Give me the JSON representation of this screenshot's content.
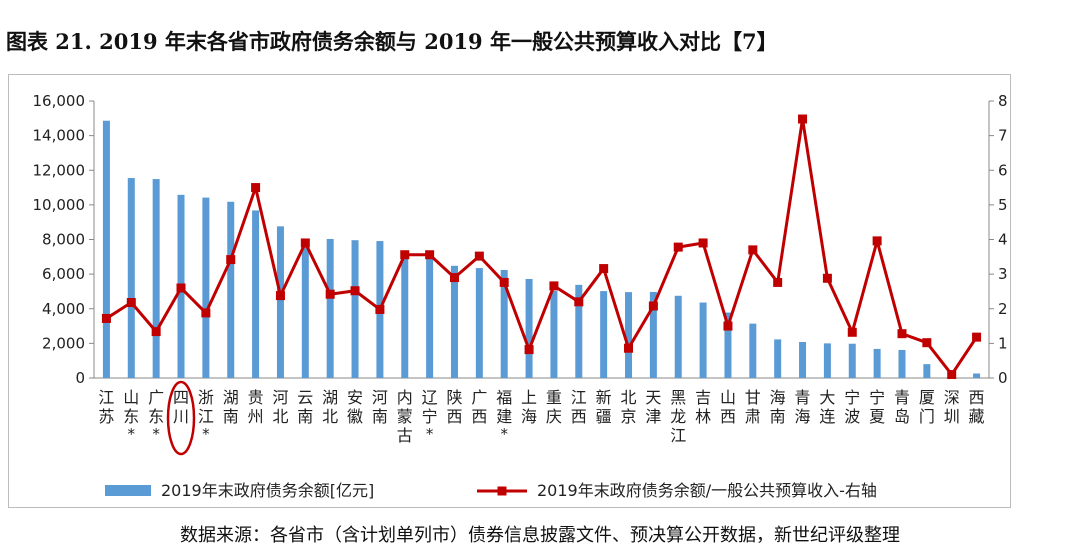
{
  "title": "图表 21. 2019 年末各省市政府债务余额与 2019 年一般公共预算收入对比【7】",
  "source": "数据来源：各省市（含计划单列市）债券信息披露文件、预决算公开数据，新世纪评级整理",
  "chart_data": {
    "type": "bar+line",
    "categories": [
      {
        "name": "江苏",
        "star": false
      },
      {
        "name": "山东",
        "star": true
      },
      {
        "name": "广东",
        "star": true
      },
      {
        "name": "四川",
        "star": false,
        "circled": true
      },
      {
        "name": "浙江",
        "star": true
      },
      {
        "name": "湖南",
        "star": false
      },
      {
        "name": "贵州",
        "star": false
      },
      {
        "name": "河北",
        "star": false
      },
      {
        "name": "云南",
        "star": false
      },
      {
        "name": "湖北",
        "star": false
      },
      {
        "name": "安徽",
        "star": false
      },
      {
        "name": "河南",
        "star": false
      },
      {
        "name": "内蒙古",
        "star": false
      },
      {
        "name": "辽宁",
        "star": true
      },
      {
        "name": "陕西",
        "star": false
      },
      {
        "name": "广西",
        "star": false
      },
      {
        "name": "福建",
        "star": true
      },
      {
        "name": "上海",
        "star": false
      },
      {
        "name": "重庆",
        "star": false
      },
      {
        "name": "江西",
        "star": false
      },
      {
        "name": "新疆",
        "star": false
      },
      {
        "name": "北京",
        "star": false
      },
      {
        "name": "天津",
        "star": false
      },
      {
        "name": "黑龙江",
        "star": false
      },
      {
        "name": "吉林",
        "star": false
      },
      {
        "name": "山西",
        "star": false
      },
      {
        "name": "甘肃",
        "star": false
      },
      {
        "name": "海南",
        "star": false
      },
      {
        "name": "青海",
        "star": false
      },
      {
        "name": "大连",
        "star": false
      },
      {
        "name": "宁波",
        "star": false
      },
      {
        "name": "宁夏",
        "star": false
      },
      {
        "name": "青岛",
        "star": false
      },
      {
        "name": "厦门",
        "star": false
      },
      {
        "name": "深圳",
        "star": false
      },
      {
        "name": "西藏",
        "star": false
      }
    ],
    "series": [
      {
        "name": "2019年末政府债务余额[亿元]",
        "axis": "left",
        "kind": "bar",
        "color": "#5B9BD5",
        "values": [
          14860,
          11550,
          11490,
          10580,
          10420,
          10180,
          9680,
          8760,
          7780,
          8030,
          7960,
          7910,
          7230,
          7160,
          6480,
          6350,
          6240,
          5720,
          5030,
          5380,
          5020,
          4960,
          4970,
          4750,
          4360,
          3780,
          3140,
          2230,
          2080,
          2000,
          1980,
          1680,
          1620,
          800,
          400,
          260
        ]
      },
      {
        "name": "2019年末政府债务余额/一般公共预算收入-右轴",
        "axis": "right",
        "kind": "line",
        "color": "#C00000",
        "values": [
          1.72,
          2.18,
          1.34,
          2.6,
          1.88,
          3.42,
          5.5,
          2.38,
          3.9,
          2.42,
          2.52,
          1.98,
          3.56,
          3.56,
          2.9,
          3.52,
          2.76,
          0.82,
          2.66,
          2.2,
          3.16,
          0.86,
          2.08,
          3.78,
          3.9,
          1.5,
          3.7,
          2.76,
          7.48,
          2.88,
          1.32,
          3.96,
          1.28,
          1.02,
          0.1,
          1.18
        ]
      }
    ],
    "y_left": {
      "min": 0,
      "max": 16000,
      "ticks": [
        "0",
        "2,000",
        "4,000",
        "6,000",
        "8,000",
        "10,000",
        "12,000",
        "14,000",
        "16,000"
      ]
    },
    "y_right": {
      "min": 0,
      "max": 8,
      "ticks": [
        "0",
        "1",
        "2",
        "3",
        "4",
        "5",
        "6",
        "7",
        "8"
      ]
    },
    "legend_position": "bottom",
    "grid": false
  }
}
